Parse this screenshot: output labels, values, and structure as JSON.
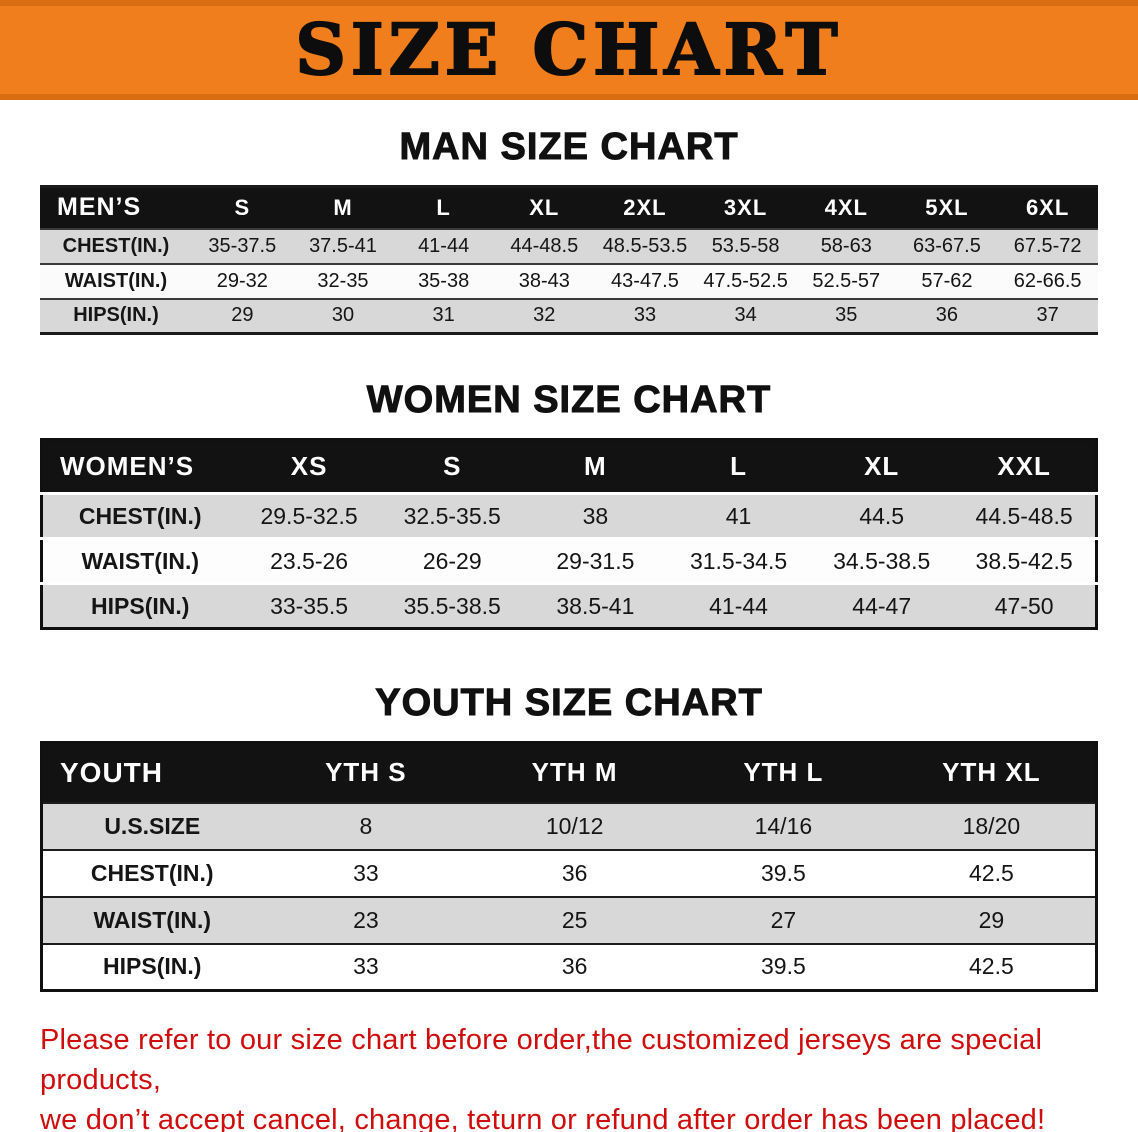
{
  "banner": {
    "title": "SIZE CHART"
  },
  "men": {
    "heading": "MAN SIZE CHART",
    "table": {
      "header": [
        "MEN’S",
        "S",
        "M",
        "L",
        "XL",
        "2XL",
        "3XL",
        "4XL",
        "5XL",
        "6XL"
      ],
      "rows": [
        [
          "CHEST(IN.)",
          "35-37.5",
          "37.5-41",
          "41-44",
          "44-48.5",
          "48.5-53.5",
          "53.5-58",
          "58-63",
          "63-67.5",
          "67.5-72"
        ],
        [
          "WAIST(IN.)",
          "29-32",
          "32-35",
          "35-38",
          "38-43",
          "43-47.5",
          "47.5-52.5",
          "52.5-57",
          "57-62",
          "62-66.5"
        ],
        [
          "HIPS(IN.)",
          "29",
          "30",
          "31",
          "32",
          "33",
          "34",
          "35",
          "36",
          "37"
        ]
      ]
    }
  },
  "women": {
    "heading": "WOMEN SIZE CHART",
    "table": {
      "header": [
        "WOMEN’S",
        "XS",
        "S",
        "M",
        "L",
        "XL",
        "XXL"
      ],
      "rows": [
        [
          "CHEST(IN.)",
          "29.5-32.5",
          "32.5-35.5",
          "38",
          "41",
          "44.5",
          "44.5-48.5"
        ],
        [
          "WAIST(IN.)",
          "23.5-26",
          "26-29",
          "29-31.5",
          "31.5-34.5",
          "34.5-38.5",
          "38.5-42.5"
        ],
        [
          "HIPS(IN.)",
          "33-35.5",
          "35.5-38.5",
          "38.5-41",
          "41-44",
          "44-47",
          "47-50"
        ]
      ]
    }
  },
  "youth": {
    "heading": "YOUTH SIZE CHART",
    "table": {
      "header": [
        "YOUTH",
        "YTH S",
        "YTH M",
        "YTH L",
        "YTH XL"
      ],
      "rows": [
        [
          "U.S.SIZE",
          "8",
          "10/12",
          "14/16",
          "18/20"
        ],
        [
          "CHEST(IN.)",
          "33",
          "36",
          "39.5",
          "42.5"
        ],
        [
          "WAIST(IN.)",
          "23",
          "25",
          "27",
          "29"
        ],
        [
          "HIPS(IN.)",
          "33",
          "36",
          "39.5",
          "42.5"
        ]
      ]
    }
  },
  "disclaimer": {
    "line1": "Please refer to our size chart before order,the customized jerseys are special products,",
    "line2": "we don’t accept cancel, change, teturn or refund after order has been placed!"
  },
  "colors": {
    "banner_orange": "#f07e1c",
    "header_black": "#121212",
    "row_gray": "#d8d8d8",
    "disclaimer_red": "#cf0d0d"
  }
}
